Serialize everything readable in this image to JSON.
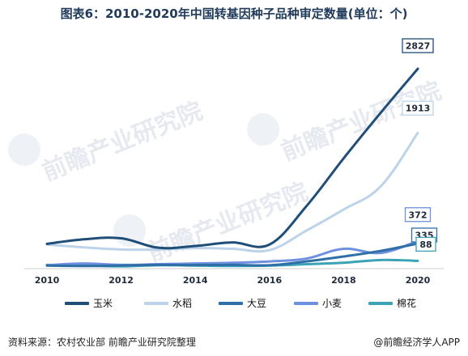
{
  "title": "图表6：2010-2020年中国转基因种子品种审定数量(单位：个)",
  "source": "资料来源：农村农业部 前瞻产业研究院整理",
  "credit": "@前瞻经济学人APP",
  "watermark_text": "前瞻产业研究院",
  "chart_data": {
    "type": "line",
    "title": "图表6：2010-2020年中国转基因种子品种审定数量(单位：个)",
    "x": [
      2010,
      2011,
      2012,
      2013,
      2014,
      2015,
      2016,
      2017,
      2018,
      2019,
      2020
    ],
    "x_ticks": [
      "2010",
      "2012",
      "2014",
      "2016",
      "2018",
      "2020"
    ],
    "xlim": [
      2010,
      2020
    ],
    "ylim": [
      0,
      3000
    ],
    "grid": false,
    "legend_position": "bottom",
    "series": [
      {
        "name": "玉米",
        "color": "#1f4e79",
        "width": 3,
        "values": [
          330,
          395,
          410,
          275,
          300,
          350,
          320,
          870,
          1550,
          2200,
          2827
        ],
        "end_label": "2827"
      },
      {
        "name": "水稻",
        "color": "#bcd3ea",
        "width": 3,
        "values": [
          320,
          280,
          250,
          250,
          270,
          260,
          240,
          520,
          820,
          1150,
          1913
        ],
        "end_label": "1913"
      },
      {
        "name": "大豆",
        "color": "#2e6fa8",
        "width": 3,
        "values": [
          20,
          15,
          22,
          30,
          28,
          30,
          25,
          80,
          150,
          230,
          335
        ],
        "end_label": "335"
      },
      {
        "name": "小麦",
        "color": "#6f8fdf",
        "width": 3,
        "values": [
          25,
          50,
          30,
          40,
          50,
          60,
          80,
          120,
          260,
          200,
          372
        ],
        "end_label": "372"
      },
      {
        "name": "棉花",
        "color": "#3ba3b5",
        "width": 3,
        "values": [
          30,
          20,
          10,
          25,
          20,
          15,
          20,
          40,
          60,
          100,
          88
        ],
        "end_label": "88"
      }
    ]
  }
}
